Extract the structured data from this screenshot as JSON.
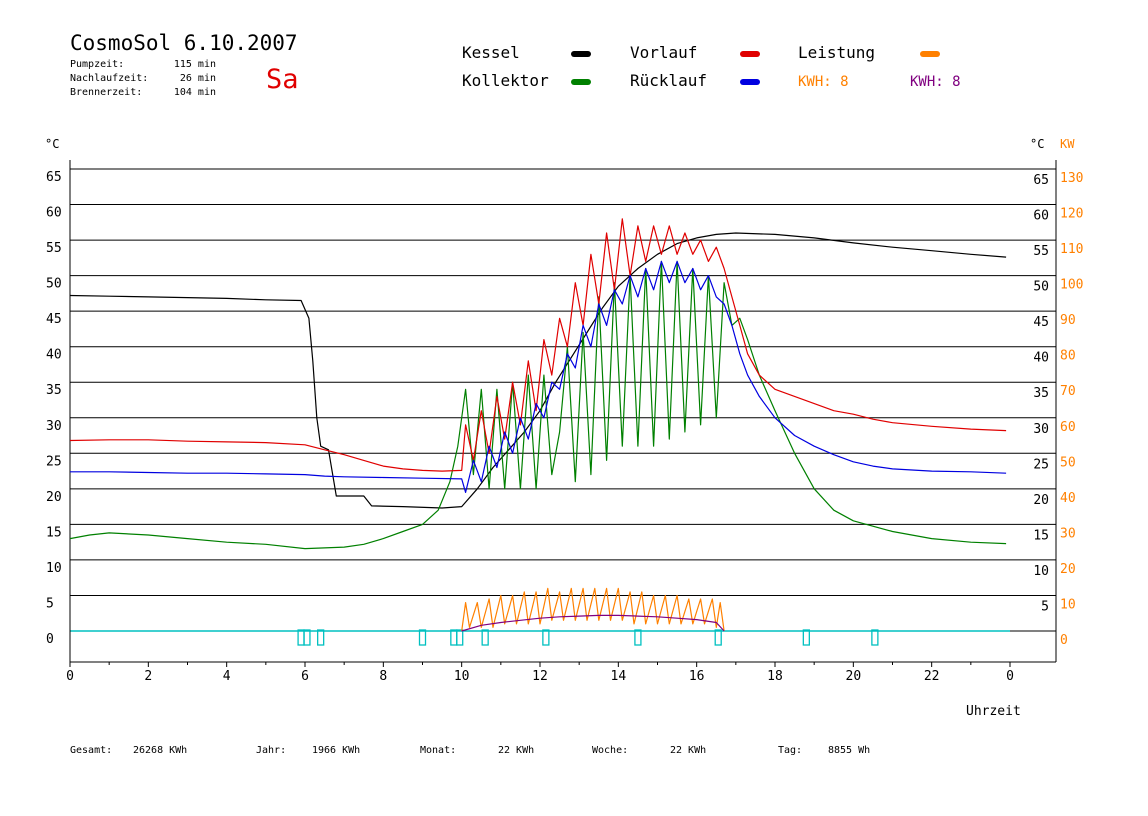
{
  "header": {
    "title": "CosmoSol 6.10.2007",
    "day": "Sa",
    "stats": [
      {
        "label": "Pumpzeit:",
        "value": "115 min"
      },
      {
        "label": "Nachlaufzeit:",
        "value": "26 min"
      },
      {
        "label": "Brennerzeit:",
        "value": "104 min"
      }
    ]
  },
  "legend": {
    "items": [
      {
        "label": "Kessel",
        "color": "#000000"
      },
      {
        "label": "Kollektor",
        "color": "#008000"
      },
      {
        "label": "Vorlauf",
        "color": "#e00000"
      },
      {
        "label": "Rücklauf",
        "color": "#0000e0"
      },
      {
        "label": "Leistung",
        "color": "#ff8000"
      }
    ],
    "kwh": [
      {
        "text": "KWH: 8",
        "color": "#ff8000"
      },
      {
        "text": "KWH: 8",
        "color": "#800080"
      }
    ]
  },
  "footer": [
    {
      "label": "Gesamt:",
      "value": "26268 KWh"
    },
    {
      "label": "Jahr:",
      "value": "1966 KWh"
    },
    {
      "label": "Monat:",
      "value": "22 KWh"
    },
    {
      "label": "Woche:",
      "value": "22 KWh"
    },
    {
      "label": "Tag:",
      "value": "8855 Wh"
    }
  ],
  "colors": {
    "accent_day": "#e00000",
    "right_axis_kw": "#ff8000",
    "baseline": "#00c0c0",
    "pump_markers": "#00c0c0"
  },
  "chart_data": {
    "type": "line",
    "xlabel": "Uhrzeit",
    "x_ticks": [
      "0",
      "2",
      "4",
      "6",
      "8",
      "10",
      "12",
      "14",
      "16",
      "18",
      "20",
      "22",
      "0"
    ],
    "xlim": [
      0,
      24
    ],
    "ylabel_left": "°C",
    "ylabel_right": "°C",
    "ylabel_right2": "KW",
    "ylim": [
      0,
      65
    ],
    "y_ticks_left": [
      0,
      5,
      10,
      15,
      20,
      25,
      30,
      35,
      40,
      45,
      50,
      55,
      60,
      65
    ],
    "y_ticks_right": [
      5,
      10,
      15,
      20,
      25,
      30,
      35,
      40,
      45,
      50,
      55,
      60,
      65
    ],
    "y_ticks_kw": [
      0,
      10,
      20,
      30,
      40,
      50,
      60,
      70,
      80,
      90,
      100,
      110,
      120,
      130
    ],
    "grid": true,
    "series": [
      {
        "name": "Kessel",
        "color": "#000000",
        "points": [
          [
            0,
            47.2
          ],
          [
            1,
            47.1
          ],
          [
            2,
            47.0
          ],
          [
            3,
            46.9
          ],
          [
            4,
            46.8
          ],
          [
            5,
            46.6
          ],
          [
            5.9,
            46.5
          ],
          [
            6.1,
            44
          ],
          [
            6.2,
            38
          ],
          [
            6.3,
            30
          ],
          [
            6.4,
            26
          ],
          [
            6.6,
            25.5
          ],
          [
            6.8,
            19
          ],
          [
            7.5,
            19
          ],
          [
            7.7,
            17.6
          ],
          [
            8.5,
            17.5
          ],
          [
            9.5,
            17.3
          ],
          [
            10,
            17.5
          ],
          [
            10.4,
            20
          ],
          [
            10.8,
            23
          ],
          [
            11.2,
            25.5
          ],
          [
            11.6,
            28
          ],
          [
            12,
            31
          ],
          [
            12.4,
            35
          ],
          [
            12.8,
            38.5
          ],
          [
            13.2,
            42
          ],
          [
            13.6,
            45.5
          ],
          [
            14,
            48.5
          ],
          [
            14.5,
            51
          ],
          [
            15,
            53
          ],
          [
            15.5,
            54.5
          ],
          [
            16,
            55.3
          ],
          [
            16.5,
            55.8
          ],
          [
            17,
            56.0
          ],
          [
            18,
            55.8
          ],
          [
            19,
            55.3
          ],
          [
            20,
            54.6
          ],
          [
            21,
            54.0
          ],
          [
            22,
            53.5
          ],
          [
            23,
            53.0
          ],
          [
            23.9,
            52.6
          ]
        ]
      },
      {
        "name": "Kollektor",
        "color": "#008000",
        "points": [
          [
            0,
            13
          ],
          [
            0.5,
            13.5
          ],
          [
            1,
            13.8
          ],
          [
            2,
            13.5
          ],
          [
            3,
            13.0
          ],
          [
            4,
            12.5
          ],
          [
            5,
            12.2
          ],
          [
            6,
            11.6
          ],
          [
            7,
            11.8
          ],
          [
            7.5,
            12.2
          ],
          [
            8,
            13
          ],
          [
            8.5,
            14
          ],
          [
            9,
            15
          ],
          [
            9.4,
            17
          ],
          [
            9.7,
            21
          ],
          [
            9.9,
            26
          ],
          [
            10.1,
            34
          ],
          [
            10.3,
            22
          ],
          [
            10.5,
            34
          ],
          [
            10.7,
            20
          ],
          [
            10.9,
            34
          ],
          [
            11.1,
            20
          ],
          [
            11.3,
            35
          ],
          [
            11.5,
            20
          ],
          [
            11.7,
            36
          ],
          [
            11.9,
            20
          ],
          [
            12.1,
            36
          ],
          [
            12.3,
            22
          ],
          [
            12.5,
            28
          ],
          [
            12.7,
            40
          ],
          [
            12.9,
            21
          ],
          [
            13.1,
            42
          ],
          [
            13.3,
            22
          ],
          [
            13.5,
            47
          ],
          [
            13.7,
            24
          ],
          [
            13.9,
            49
          ],
          [
            14.1,
            26
          ],
          [
            14.3,
            50
          ],
          [
            14.5,
            26
          ],
          [
            14.7,
            51
          ],
          [
            14.9,
            26
          ],
          [
            15.1,
            52
          ],
          [
            15.3,
            27
          ],
          [
            15.5,
            52
          ],
          [
            15.7,
            28
          ],
          [
            15.9,
            51
          ],
          [
            16.1,
            29
          ],
          [
            16.3,
            50
          ],
          [
            16.5,
            30
          ],
          [
            16.7,
            49
          ],
          [
            16.9,
            43
          ],
          [
            17.1,
            44
          ],
          [
            17.3,
            41
          ],
          [
            17.6,
            36
          ],
          [
            18,
            31
          ],
          [
            18.5,
            25
          ],
          [
            19,
            20
          ],
          [
            19.5,
            17
          ],
          [
            20,
            15.5
          ],
          [
            21,
            14
          ],
          [
            22,
            13
          ],
          [
            23,
            12.5
          ],
          [
            23.9,
            12.3
          ]
        ]
      },
      {
        "name": "Vorlauf",
        "color": "#e00000",
        "points": [
          [
            0,
            26.8
          ],
          [
            1,
            26.9
          ],
          [
            2,
            26.9
          ],
          [
            3,
            26.7
          ],
          [
            4,
            26.6
          ],
          [
            5,
            26.5
          ],
          [
            6,
            26.2
          ],
          [
            6.5,
            25.5
          ],
          [
            7,
            24.8
          ],
          [
            7.5,
            24.0
          ],
          [
            8,
            23.2
          ],
          [
            8.5,
            22.8
          ],
          [
            9,
            22.6
          ],
          [
            9.5,
            22.5
          ],
          [
            10,
            22.6
          ],
          [
            10.1,
            29
          ],
          [
            10.3,
            24
          ],
          [
            10.5,
            31
          ],
          [
            10.7,
            25
          ],
          [
            10.9,
            33
          ],
          [
            11.1,
            27
          ],
          [
            11.3,
            35
          ],
          [
            11.5,
            29
          ],
          [
            11.7,
            38
          ],
          [
            11.9,
            31
          ],
          [
            12.1,
            41
          ],
          [
            12.3,
            36
          ],
          [
            12.5,
            44
          ],
          [
            12.7,
            40
          ],
          [
            12.9,
            49
          ],
          [
            13.1,
            43
          ],
          [
            13.3,
            53
          ],
          [
            13.5,
            46
          ],
          [
            13.7,
            56
          ],
          [
            13.9,
            48
          ],
          [
            14.1,
            58
          ],
          [
            14.3,
            50
          ],
          [
            14.5,
            57
          ],
          [
            14.7,
            52
          ],
          [
            14.9,
            57
          ],
          [
            15.1,
            53
          ],
          [
            15.3,
            57
          ],
          [
            15.5,
            53
          ],
          [
            15.7,
            56
          ],
          [
            15.9,
            53
          ],
          [
            16.1,
            55
          ],
          [
            16.3,
            52
          ],
          [
            16.5,
            54
          ],
          [
            16.7,
            51
          ],
          [
            16.9,
            47
          ],
          [
            17.1,
            43
          ],
          [
            17.3,
            39
          ],
          [
            17.6,
            36
          ],
          [
            18,
            34
          ],
          [
            18.5,
            33
          ],
          [
            19,
            32
          ],
          [
            19.5,
            31
          ],
          [
            20,
            30.5
          ],
          [
            20.5,
            29.8
          ],
          [
            21,
            29.3
          ],
          [
            22,
            28.8
          ],
          [
            23,
            28.4
          ],
          [
            23.9,
            28.2
          ]
        ]
      },
      {
        "name": "Rücklauf",
        "color": "#0000e0",
        "points": [
          [
            0,
            22.4
          ],
          [
            1,
            22.4
          ],
          [
            2,
            22.3
          ],
          [
            3,
            22.2
          ],
          [
            4,
            22.2
          ],
          [
            5,
            22.1
          ],
          [
            6,
            22.0
          ],
          [
            6.5,
            21.8
          ],
          [
            7,
            21.7
          ],
          [
            8,
            21.6
          ],
          [
            9,
            21.5
          ],
          [
            10,
            21.4
          ],
          [
            10.1,
            19.5
          ],
          [
            10.3,
            24
          ],
          [
            10.5,
            21
          ],
          [
            10.7,
            26
          ],
          [
            10.9,
            23
          ],
          [
            11.1,
            28
          ],
          [
            11.3,
            25
          ],
          [
            11.5,
            30
          ],
          [
            11.7,
            27
          ],
          [
            11.9,
            32
          ],
          [
            12.1,
            30
          ],
          [
            12.3,
            35
          ],
          [
            12.5,
            34
          ],
          [
            12.7,
            39
          ],
          [
            12.9,
            37
          ],
          [
            13.1,
            43
          ],
          [
            13.3,
            40
          ],
          [
            13.5,
            46
          ],
          [
            13.7,
            43
          ],
          [
            13.9,
            48
          ],
          [
            14.1,
            46
          ],
          [
            14.3,
            50
          ],
          [
            14.5,
            47
          ],
          [
            14.7,
            51
          ],
          [
            14.9,
            48
          ],
          [
            15.1,
            52
          ],
          [
            15.3,
            49
          ],
          [
            15.5,
            52
          ],
          [
            15.7,
            49
          ],
          [
            15.9,
            51
          ],
          [
            16.1,
            48
          ],
          [
            16.3,
            50
          ],
          [
            16.5,
            47
          ],
          [
            16.7,
            46
          ],
          [
            16.9,
            43
          ],
          [
            17.1,
            39
          ],
          [
            17.3,
            36
          ],
          [
            17.6,
            33
          ],
          [
            18,
            30
          ],
          [
            18.5,
            27.5
          ],
          [
            19,
            26
          ],
          [
            19.5,
            24.8
          ],
          [
            20,
            23.8
          ],
          [
            20.5,
            23.2
          ],
          [
            21,
            22.8
          ],
          [
            22,
            22.5
          ],
          [
            23,
            22.4
          ],
          [
            23.9,
            22.2
          ]
        ]
      },
      {
        "name": "Leistung",
        "color": "#ff8000",
        "axis": "kw",
        "points": [
          [
            10.0,
            0
          ],
          [
            10.1,
            4
          ],
          [
            10.2,
            0.5
          ],
          [
            10.4,
            4
          ],
          [
            10.5,
            0.5
          ],
          [
            10.7,
            4.5
          ],
          [
            10.8,
            0.5
          ],
          [
            11.0,
            5
          ],
          [
            11.1,
            1
          ],
          [
            11.3,
            5
          ],
          [
            11.4,
            1
          ],
          [
            11.6,
            5.5
          ],
          [
            11.7,
            1
          ],
          [
            11.9,
            5.5
          ],
          [
            12.0,
            1
          ],
          [
            12.2,
            6
          ],
          [
            12.3,
            1.5
          ],
          [
            12.5,
            5.5
          ],
          [
            12.6,
            1.5
          ],
          [
            12.8,
            6
          ],
          [
            12.9,
            1.5
          ],
          [
            13.1,
            6
          ],
          [
            13.2,
            1.5
          ],
          [
            13.4,
            6
          ],
          [
            13.5,
            1.5
          ],
          [
            13.7,
            6
          ],
          [
            13.8,
            1.5
          ],
          [
            14.0,
            6
          ],
          [
            14.1,
            1.5
          ],
          [
            14.3,
            5.5
          ],
          [
            14.4,
            1
          ],
          [
            14.6,
            5.5
          ],
          [
            14.7,
            1
          ],
          [
            14.9,
            5
          ],
          [
            15.0,
            1
          ],
          [
            15.2,
            5
          ],
          [
            15.3,
            1
          ],
          [
            15.5,
            5
          ],
          [
            15.6,
            1
          ],
          [
            15.8,
            4.5
          ],
          [
            15.9,
            1
          ],
          [
            16.1,
            4.5
          ],
          [
            16.2,
            1
          ],
          [
            16.4,
            4.5
          ],
          [
            16.5,
            0.5
          ],
          [
            16.6,
            4
          ],
          [
            16.7,
            0
          ]
        ]
      },
      {
        "name": "KWH",
        "color": "#800080",
        "axis": "kw",
        "points": [
          [
            10.0,
            0
          ],
          [
            10.5,
            0.8
          ],
          [
            11.0,
            1.2
          ],
          [
            11.5,
            1.5
          ],
          [
            12.0,
            1.8
          ],
          [
            12.5,
            2.0
          ],
          [
            13.0,
            2.1
          ],
          [
            13.5,
            2.2
          ],
          [
            14.0,
            2.2
          ],
          [
            14.5,
            2.1
          ],
          [
            15.0,
            2.0
          ],
          [
            15.5,
            1.8
          ],
          [
            16.0,
            1.6
          ],
          [
            16.5,
            1.2
          ],
          [
            16.7,
            0
          ]
        ]
      }
    ],
    "pump_markers_hours": [
      5.9,
      6.05,
      6.4,
      9.0,
      9.8,
      9.95,
      10.6,
      12.15,
      14.5,
      16.55,
      18.8,
      20.55
    ]
  }
}
